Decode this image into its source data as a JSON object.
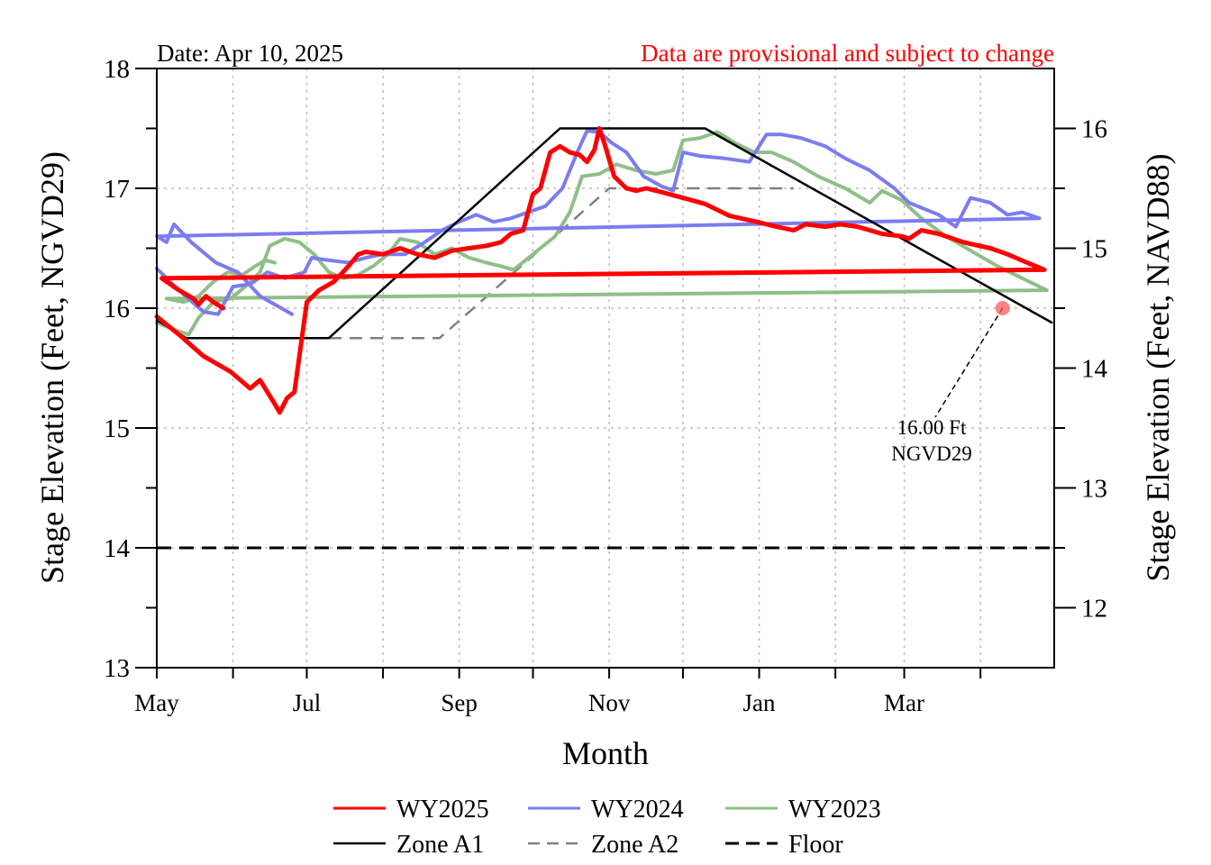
{
  "chart_data": {
    "type": "line",
    "date_label": "Date: Apr 10, 2025",
    "disclaimer": "Data are provisional and subject to change",
    "xlabel": "Month",
    "ylabel_left": "Stage Elevation (Feet, NGVD29)",
    "ylabel_right": "Stage Elevation (Feet, NAVD88)",
    "x_tick_labels": [
      "May",
      "Jul",
      "Sep",
      "Nov",
      "Jan",
      "Mar"
    ],
    "month_range": [
      "May",
      "Apr"
    ],
    "ylim_left": [
      13,
      18
    ],
    "y_ticks_left": [
      "13",
      "14",
      "15",
      "16",
      "17",
      "18"
    ],
    "ylim_right": [
      11.5,
      16.5
    ],
    "y_ticks_right": [
      "12",
      "13",
      "14",
      "15",
      "16"
    ],
    "grid": true,
    "legend_position": "bottom",
    "annotation": {
      "line1": "16.00 Ft",
      "line2": "NGVD29",
      "x": "Apr 10",
      "y": 16.0
    },
    "series": [
      {
        "name": "WY2025",
        "color": "#ff0000",
        "style": "solid",
        "points": [
          [
            "May 1",
            15.93
          ],
          [
            "May 10",
            15.78
          ],
          [
            "May 20",
            15.6
          ],
          [
            "May 31",
            15.47
          ],
          [
            "Jun 8",
            15.33
          ],
          [
            "Jun 12",
            15.4
          ],
          [
            "Jun 18",
            15.2
          ],
          [
            "Jun 20",
            15.13
          ],
          [
            "Jun 23",
            15.25
          ],
          [
            "Jun 26",
            15.3
          ],
          [
            "Jun 29",
            15.75
          ],
          [
            "Jul 1",
            16.05
          ],
          [
            "Jul 6",
            16.15
          ],
          [
            "Jul 12",
            16.22
          ],
          [
            "Jul 18",
            16.35
          ],
          [
            "Jul 22",
            16.45
          ],
          [
            "Jul 25",
            16.47
          ],
          [
            "Aug 1",
            16.45
          ],
          [
            "Aug 8",
            16.5
          ],
          [
            "Aug 15",
            16.45
          ],
          [
            "Aug 22",
            16.42
          ],
          [
            "Aug 29",
            16.48
          ],
          [
            "Sep 5",
            16.5
          ],
          [
            "Sep 12",
            16.52
          ],
          [
            "Sep 18",
            16.55
          ],
          [
            "Sep 22",
            16.62
          ],
          [
            "Sep 27",
            16.65
          ],
          [
            "Oct 1",
            16.95
          ],
          [
            "Oct 4",
            17.0
          ],
          [
            "Oct 8",
            17.3
          ],
          [
            "Oct 12",
            17.35
          ],
          [
            "Oct 16",
            17.3
          ],
          [
            "Oct 20",
            17.28
          ],
          [
            "Oct 23",
            17.22
          ],
          [
            "Oct 26",
            17.32
          ],
          [
            "Oct 28",
            17.5
          ],
          [
            "Oct 30",
            17.38
          ],
          [
            "Nov 3",
            17.1
          ],
          [
            "Nov 8",
            17.0
          ],
          [
            "Nov 12",
            16.98
          ],
          [
            "Nov 16",
            17.0
          ],
          [
            "Nov 22",
            16.97
          ],
          [
            "Dec 1",
            16.92
          ],
          [
            "Dec 10",
            16.87
          ],
          [
            "Dec 20",
            16.77
          ],
          [
            "Dec 31",
            16.72
          ],
          [
            "Jan 8",
            16.68
          ],
          [
            "Jan 15",
            16.65
          ],
          [
            "Jan 20",
            16.7
          ],
          [
            "Jan 28",
            16.68
          ],
          [
            "Feb 3",
            16.7
          ],
          [
            "Feb 10",
            16.68
          ],
          [
            "Feb 20",
            16.62
          ],
          [
            "Feb 28",
            16.6
          ],
          [
            "Mar 3",
            16.58
          ],
          [
            "Mar 8",
            16.65
          ],
          [
            "Mar 15",
            16.62
          ],
          [
            "Mar 25",
            16.55
          ],
          [
            "Apr 5",
            16.5
          ],
          [
            "Apr 12",
            16.45
          ],
          [
            "Apr 20",
            16.38
          ],
          [
            "Apr 27",
            16.32
          ],
          [
            "May 3",
            16.25
          ],
          [
            "May 10",
            16.15
          ],
          [
            "May 16",
            16.08
          ],
          [
            "May 18",
            16.03
          ],
          [
            "May 21",
            16.1
          ],
          [
            "May 24",
            16.05
          ],
          [
            "May 28",
            16.0
          ]
        ]
      },
      {
        "name": "WY2024",
        "color": "#7c7cf0",
        "style": "solid",
        "points": [
          [
            "May 1",
            16.33
          ],
          [
            "May 10",
            16.15
          ],
          [
            "May 20",
            15.97
          ],
          [
            "May 26",
            15.95
          ],
          [
            "Jun 1",
            16.18
          ],
          [
            "Jun 8",
            16.2
          ],
          [
            "Jun 15",
            16.3
          ],
          [
            "Jun 22",
            16.25
          ],
          [
            "Jun 30",
            16.3
          ],
          [
            "Jul 3",
            16.42
          ],
          [
            "Jul 10",
            16.4
          ],
          [
            "Jul 18",
            16.38
          ],
          [
            "Jul 25",
            16.42
          ],
          [
            "Aug 1",
            16.45
          ],
          [
            "Aug 10",
            16.45
          ],
          [
            "Aug 18",
            16.55
          ],
          [
            "Aug 25",
            16.65
          ],
          [
            "Sep 1",
            16.72
          ],
          [
            "Sep 8",
            16.78
          ],
          [
            "Sep 15",
            16.72
          ],
          [
            "Sep 22",
            16.75
          ],
          [
            "Sep 29",
            16.8
          ],
          [
            "Oct 6",
            16.85
          ],
          [
            "Oct 13",
            17.0
          ],
          [
            "Oct 19",
            17.3
          ],
          [
            "Oct 23",
            17.48
          ],
          [
            "Oct 28",
            17.47
          ],
          [
            "Nov 2",
            17.38
          ],
          [
            "Nov 8",
            17.3
          ],
          [
            "Nov 15",
            17.1
          ],
          [
            "Nov 22",
            17.02
          ],
          [
            "Nov 27",
            16.98
          ],
          [
            "Dec 1",
            17.3
          ],
          [
            "Dec 8",
            17.27
          ],
          [
            "Dec 18",
            17.25
          ],
          [
            "Dec 28",
            17.22
          ],
          [
            "Jan 4",
            17.45
          ],
          [
            "Jan 10",
            17.45
          ],
          [
            "Jan 18",
            17.42
          ],
          [
            "Jan 28",
            17.35
          ],
          [
            "Feb 5",
            17.25
          ],
          [
            "Feb 15",
            17.15
          ],
          [
            "Feb 25",
            17.0
          ],
          [
            "Mar 3",
            16.88
          ],
          [
            "Mar 15",
            16.78
          ],
          [
            "Mar 22",
            16.68
          ],
          [
            "Mar 28",
            16.92
          ],
          [
            "Apr 5",
            16.88
          ],
          [
            "Apr 12",
            16.78
          ],
          [
            "Apr 18",
            16.8
          ],
          [
            "Apr 25",
            16.75
          ],
          [
            "May 1",
            16.6
          ],
          [
            "May 5",
            16.55
          ],
          [
            "May 8",
            16.7
          ],
          [
            "May 15",
            16.55
          ],
          [
            "May 25",
            16.38
          ],
          [
            "Jun 3",
            16.3
          ],
          [
            "Jun 12",
            16.1
          ],
          [
            "Jun 25",
            15.95
          ]
        ]
      },
      {
        "name": "WY2023",
        "color": "#8fbf88",
        "style": "solid",
        "points": [
          [
            "May 1",
            15.88
          ],
          [
            "May 8",
            15.82
          ],
          [
            "May 14",
            15.78
          ],
          [
            "May 18",
            15.92
          ],
          [
            "May 24",
            16.05
          ],
          [
            "May 31",
            16.08
          ],
          [
            "Jun 6",
            16.18
          ],
          [
            "Jun 12",
            16.3
          ],
          [
            "Jun 16",
            16.52
          ],
          [
            "Jun 22",
            16.58
          ],
          [
            "Jun 28",
            16.55
          ],
          [
            "Jul 4",
            16.45
          ],
          [
            "Jul 10",
            16.3
          ],
          [
            "Jul 16",
            16.25
          ],
          [
            "Jul 22",
            16.28
          ],
          [
            "Jul 28",
            16.35
          ],
          [
            "Aug 3",
            16.45
          ],
          [
            "Aug 8",
            16.58
          ],
          [
            "Aug 15",
            16.55
          ],
          [
            "Aug 22",
            16.45
          ],
          [
            "Aug 29",
            16.5
          ],
          [
            "Sep 5",
            16.42
          ],
          [
            "Sep 12",
            16.38
          ],
          [
            "Sep 18",
            16.35
          ],
          [
            "Sep 23",
            16.32
          ],
          [
            "Sep 28",
            16.4
          ],
          [
            "Oct 4",
            16.5
          ],
          [
            "Oct 10",
            16.6
          ],
          [
            "Oct 16",
            16.8
          ],
          [
            "Oct 21",
            17.1
          ],
          [
            "Oct 28",
            17.12
          ],
          [
            "Nov 4",
            17.2
          ],
          [
            "Nov 12",
            17.15
          ],
          [
            "Nov 20",
            17.12
          ],
          [
            "Nov 27",
            17.15
          ],
          [
            "Dec 1",
            17.4
          ],
          [
            "Dec 8",
            17.42
          ],
          [
            "Dec 15",
            17.47
          ],
          [
            "Dec 22",
            17.38
          ],
          [
            "Dec 30",
            17.3
          ],
          [
            "Jan 6",
            17.3
          ],
          [
            "Jan 15",
            17.22
          ],
          [
            "Jan 25",
            17.1
          ],
          [
            "Feb 5",
            17.0
          ],
          [
            "Feb 15",
            16.88
          ],
          [
            "Feb 20",
            16.98
          ],
          [
            "Feb 28",
            16.9
          ],
          [
            "Mar 8",
            16.75
          ],
          [
            "Mar 18",
            16.6
          ],
          [
            "Mar 28",
            16.48
          ],
          [
            "Apr 8",
            16.35
          ],
          [
            "Apr 18",
            16.25
          ],
          [
            "Apr 28",
            16.15
          ],
          [
            "May 5",
            16.08
          ],
          [
            "May 12",
            16.05
          ],
          [
            "May 18",
            16.1
          ],
          [
            "May 24",
            16.22
          ],
          [
            "May 30",
            16.3
          ],
          [
            "Jun 5",
            16.28
          ],
          [
            "Jun 10",
            16.35
          ],
          [
            "Jun 14",
            16.4
          ],
          [
            "Jun 18",
            16.38
          ]
        ]
      },
      {
        "name": "Zone A1",
        "color": "#000000",
        "style": "solid",
        "points": [
          [
            "May 1",
            15.9
          ],
          [
            "May 13",
            15.75
          ],
          [
            "Jul 10",
            15.75
          ],
          [
            "Oct 12",
            17.5
          ],
          [
            "Dec 10",
            17.5
          ],
          [
            "Apr 30",
            15.88
          ]
        ]
      },
      {
        "name": "Zone A2",
        "color": "#808080",
        "style": "dashed",
        "points": [
          [
            "Jul 10",
            15.75
          ],
          [
            "Aug 24",
            15.75
          ],
          [
            "Nov 1",
            17.0
          ],
          [
            "Jan 15",
            17.0
          ]
        ]
      },
      {
        "name": "Floor",
        "color": "#000000",
        "style": "dashed",
        "points": [
          [
            "May 1",
            14.0
          ],
          [
            "Apr 30",
            14.0
          ]
        ]
      }
    ]
  }
}
